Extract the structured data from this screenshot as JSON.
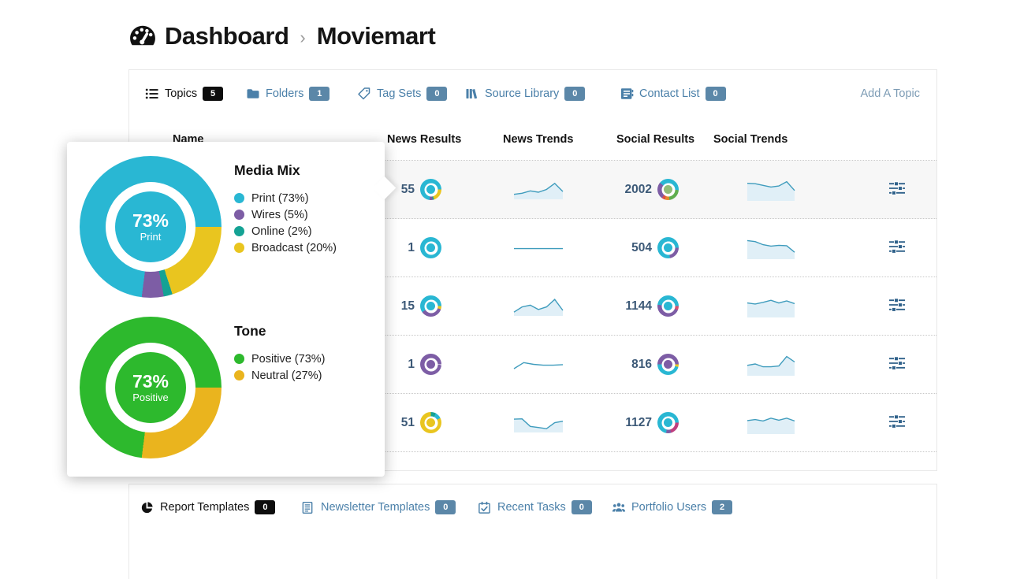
{
  "breadcrumb": {
    "root": "Dashboard",
    "separator": "›",
    "current": "Moviemart"
  },
  "topbar": {
    "tabs": [
      {
        "label": "Topics",
        "count": "5",
        "icon": "list-icon"
      },
      {
        "label": "Folders",
        "count": "1",
        "icon": "folder-icon"
      },
      {
        "label": "Tag Sets",
        "count": "0",
        "icon": "tag-icon"
      },
      {
        "label": "Source Library",
        "count": "0",
        "icon": "library-icon"
      },
      {
        "label": "Contact List",
        "count": "0",
        "icon": "contact-book-icon"
      }
    ],
    "action": "Add A Topic"
  },
  "table": {
    "columns": [
      "Name",
      "News Results",
      "News Trends",
      "Social Results",
      "Social Trends"
    ],
    "rows": [
      {
        "news_results": "55",
        "news_donut": {
          "from": 90,
          "segments": [
            [
              "#e9c51f",
              20
            ],
            [
              "#14a294",
              2
            ],
            [
              "#7d5da5",
              5
            ],
            [
              "#29b7d3",
              73
            ]
          ],
          "center": "#29b7d3"
        },
        "news_trend": {
          "pts": [
            0.78,
            0.72,
            0.58,
            0.66,
            0.5,
            0.15,
            0.62
          ],
          "fill": true
        },
        "social_results": "2002",
        "social_donut": {
          "from": 0,
          "segments": [
            [
              "#29b7d3",
              26
            ],
            [
              "#5fae4e",
              22
            ],
            [
              "#e5892c",
              7
            ],
            [
              "#d8504a",
              5
            ],
            [
              "#7d5da5",
              26
            ],
            [
              "#29b7d3",
              14
            ]
          ],
          "center": "#90bd78"
        },
        "social_trend": {
          "pts": [
            0.2,
            0.22,
            0.3,
            0.38,
            0.33,
            0.12,
            0.55
          ],
          "fill": true
        }
      },
      {
        "news_results": "1",
        "news_donut": {
          "from": 90,
          "segments": [
            [
              "#29b7d3",
              100
            ]
          ],
          "center": "#29b7d3"
        },
        "news_trend": {
          "pts": [
            0.55,
            0.55,
            0.55,
            0.55,
            0.55
          ],
          "fill": false
        },
        "social_results": "504",
        "social_donut": {
          "from": 90,
          "segments": [
            [
              "#7d5da5",
              22
            ],
            [
              "#29b7d3",
              78
            ]
          ],
          "center": "#29b7d3"
        },
        "social_trend": {
          "pts": [
            0.15,
            0.2,
            0.35,
            0.42,
            0.38,
            0.4,
            0.72
          ],
          "fill": true
        }
      },
      {
        "news_results": "15",
        "news_donut": {
          "from": 90,
          "segments": [
            [
              "#e9c51f",
              5
            ],
            [
              "#7d5da5",
              35
            ],
            [
              "#29b7d3",
              60
            ]
          ],
          "center": "#29b7d3"
        },
        "news_trend": {
          "pts": [
            0.85,
            0.55,
            0.45,
            0.7,
            0.55,
            0.12,
            0.75
          ],
          "fill": true
        },
        "social_results": "1144",
        "social_donut": {
          "from": 90,
          "segments": [
            [
              "#d8506e",
              6
            ],
            [
              "#7d5da5",
              46
            ],
            [
              "#29b7d3",
              48
            ]
          ],
          "center": "#29b7d3"
        },
        "social_trend": {
          "pts": [
            0.35,
            0.4,
            0.32,
            0.22,
            0.35,
            0.25,
            0.38
          ],
          "fill": true
        }
      },
      {
        "news_results": "1",
        "news_donut": {
          "from": 90,
          "segments": [
            [
              "#ffffff",
              1
            ],
            [
              "#7d5da5",
              99
            ]
          ],
          "center": "#7d5da5"
        },
        "news_trend": {
          "pts": [
            0.75,
            0.4,
            0.5,
            0.55,
            0.55,
            0.52
          ],
          "fill": false
        },
        "social_results": "816",
        "social_donut": {
          "from": 90,
          "segments": [
            [
              "#e9c51f",
              4
            ],
            [
              "#29b7d3",
              46
            ],
            [
              "#7d5da5",
              50
            ]
          ],
          "center": "#7d5da5"
        },
        "social_trend": {
          "pts": [
            0.55,
            0.48,
            0.62,
            0.62,
            0.58,
            0.12,
            0.38
          ],
          "fill": true
        }
      },
      {
        "news_results": "51",
        "news_donut": {
          "from": 0,
          "segments": [
            [
              "#14a294",
              8
            ],
            [
              "#29b7d3",
              10
            ],
            [
              "#e9c51f",
              82
            ]
          ],
          "center": "#e9c51f"
        },
        "news_trend": {
          "pts": [
            0.3,
            0.28,
            0.72,
            0.78,
            0.85,
            0.5,
            0.42
          ],
          "fill": true
        },
        "social_results": "1127",
        "social_donut": {
          "from": 90,
          "segments": [
            [
              "#bf3f7f",
              20
            ],
            [
              "#7d5da5",
              8
            ],
            [
              "#29b7d3",
              72
            ]
          ],
          "center": "#29b7d3"
        },
        "social_trend": {
          "pts": [
            0.4,
            0.35,
            0.42,
            0.28,
            0.38,
            0.28,
            0.42
          ],
          "fill": true
        }
      }
    ]
  },
  "popover": {
    "media_mix": {
      "title": "Media Mix",
      "center_value": "73%",
      "center_label": "Print",
      "center_color": "#29b7d3",
      "donut": {
        "from": 90,
        "segments": [
          [
            "#e9c51f",
            20
          ],
          [
            "#14a294",
            2
          ],
          [
            "#7d5da5",
            5
          ],
          [
            "#29b7d3",
            73
          ]
        ]
      },
      "legend": [
        {
          "label": "Print (73%)",
          "color": "#29b7d3"
        },
        {
          "label": "Wires (5%)",
          "color": "#7d5da5"
        },
        {
          "label": "Online (2%)",
          "color": "#14a294"
        },
        {
          "label": "Broadcast (20%)",
          "color": "#e9c51f"
        }
      ]
    },
    "tone": {
      "title": "Tone",
      "center_value": "73%",
      "center_label": "Positive",
      "center_color": "#2db92d",
      "donut": {
        "from": 90,
        "segments": [
          [
            "#eab41e",
            27
          ],
          [
            "#2db92d",
            73
          ]
        ]
      },
      "legend": [
        {
          "label": "Positive (73%)",
          "color": "#2db92d"
        },
        {
          "label": "Neutral (27%)",
          "color": "#eab41e"
        }
      ]
    }
  },
  "footer": {
    "tabs": [
      {
        "label": "Report Templates",
        "count": "0",
        "icon": "pie-chart-icon"
      },
      {
        "label": "Newsletter Templates",
        "count": "0",
        "icon": "newsletter-icon"
      },
      {
        "label": "Recent Tasks",
        "count": "0",
        "icon": "calendar-check-icon"
      },
      {
        "label": "Portfolio Users",
        "count": "2",
        "icon": "users-icon"
      }
    ]
  },
  "chart_data": [
    {
      "type": "pie",
      "title": "Media Mix",
      "labels": [
        "Print",
        "Wires",
        "Online",
        "Broadcast"
      ],
      "values": [
        73,
        5,
        2,
        20
      ],
      "colors": [
        "#29b7d3",
        "#7d5da5",
        "#14a294",
        "#e9c51f"
      ],
      "center_label": "73% Print",
      "legend_position": "right"
    },
    {
      "type": "pie",
      "title": "Tone",
      "labels": [
        "Positive",
        "Neutral"
      ],
      "values": [
        73,
        27
      ],
      "colors": [
        "#2db92d",
        "#eab41e"
      ],
      "center_label": "73% Positive",
      "legend_position": "right"
    }
  ]
}
